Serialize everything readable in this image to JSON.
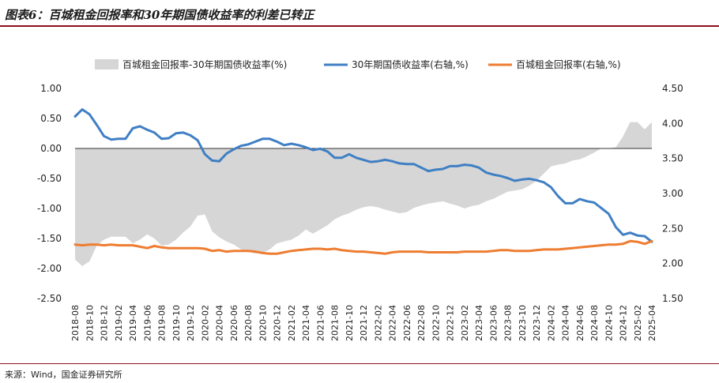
{
  "title": "图表6：百城租金回报率和30年期国债收益率的利差已转正",
  "source": "来源：Wind，国金证券研究所",
  "colors": {
    "spread": "#d6d6d6",
    "bond": "#3f7fc4",
    "rent": "#ee7d31",
    "rule": "#8b0f1e"
  },
  "chart_data": {
    "type": "line",
    "x": [
      "2018-08",
      "2018-09",
      "2018-10",
      "2018-11",
      "2018-12",
      "2019-01",
      "2019-02",
      "2019-03",
      "2019-04",
      "2019-05",
      "2019-06",
      "2019-07",
      "2019-08",
      "2019-09",
      "2019-10",
      "2019-11",
      "2019-12",
      "2020-01",
      "2020-02",
      "2020-03",
      "2020-04",
      "2020-05",
      "2020-06",
      "2020-07",
      "2020-08",
      "2020-09",
      "2020-10",
      "2020-11",
      "2020-12",
      "2021-01",
      "2021-02",
      "2021-03",
      "2021-04",
      "2021-05",
      "2021-06",
      "2021-07",
      "2021-08",
      "2021-09",
      "2021-10",
      "2021-11",
      "2021-12",
      "2022-01",
      "2022-02",
      "2022-03",
      "2022-04",
      "2022-05",
      "2022-06",
      "2022-07",
      "2022-08",
      "2022-09",
      "2022-10",
      "2022-11",
      "2022-12",
      "2023-01",
      "2023-02",
      "2023-03",
      "2023-04",
      "2023-05",
      "2023-06",
      "2023-07",
      "2023-08",
      "2023-09",
      "2023-10",
      "2023-11",
      "2023-12",
      "2024-01",
      "2024-02",
      "2024-03",
      "2024-04",
      "2024-05",
      "2024-06",
      "2024-07",
      "2024-08",
      "2024-09",
      "2024-10",
      "2024-11",
      "2024-12",
      "2025-01",
      "2025-02",
      "2025-03",
      "2025-04"
    ],
    "x_tick_labels": [
      "2018-08",
      "2018-10",
      "2018-12",
      "2019-02",
      "2019-04",
      "2019-06",
      "2019-08",
      "2019-10",
      "2019-12",
      "2020-02",
      "2020-04",
      "2020-06",
      "2020-08",
      "2020-10",
      "2020-12",
      "2021-02",
      "2021-04",
      "2021-06",
      "2021-08",
      "2021-10",
      "2021-12",
      "2022-02",
      "2022-04",
      "2022-06",
      "2022-08",
      "2022-10",
      "2022-12",
      "2023-02",
      "2023-04",
      "2023-06",
      "2023-08",
      "2023-10",
      "2023-12",
      "2024-02",
      "2024-04",
      "2024-06",
      "2024-08",
      "2024-10",
      "2024-12",
      "2025-02",
      "2025-04"
    ],
    "y_left": {
      "min": -2.5,
      "max": 1.0,
      "ticks": [
        "1.00",
        "0.50",
        "0.00",
        "-0.50",
        "-1.00",
        "-1.50",
        "-2.00",
        "-2.50"
      ]
    },
    "y_right": {
      "min": 1.5,
      "max": 4.5,
      "ticks": [
        "4.50",
        "4.00",
        "3.50",
        "3.00",
        "2.50",
        "2.00",
        "1.50"
      ]
    },
    "legend": {
      "position": "top"
    },
    "series": [
      {
        "name": "百城租金回报率-30年期国债收益率(%)",
        "type": "area",
        "axis": "left",
        "values": [
          -1.85,
          -1.96,
          -1.88,
          -1.62,
          -1.52,
          -1.47,
          -1.47,
          -1.47,
          -1.58,
          -1.52,
          -1.43,
          -1.5,
          -1.62,
          -1.6,
          -1.52,
          -1.4,
          -1.3,
          -1.12,
          -1.1,
          -1.38,
          -1.48,
          -1.55,
          -1.6,
          -1.68,
          -1.72,
          -1.75,
          -1.74,
          -1.68,
          -1.58,
          -1.55,
          -1.52,
          -1.45,
          -1.35,
          -1.42,
          -1.35,
          -1.28,
          -1.18,
          -1.12,
          -1.08,
          -1.02,
          -0.98,
          -0.96,
          -0.98,
          -1.02,
          -1.05,
          -1.08,
          -1.06,
          -0.99,
          -0.95,
          -0.92,
          -0.9,
          -0.88,
          -0.92,
          -0.95,
          -1.0,
          -0.96,
          -0.94,
          -0.88,
          -0.84,
          -0.78,
          -0.72,
          -0.7,
          -0.68,
          -0.62,
          -0.54,
          -0.42,
          -0.3,
          -0.27,
          -0.25,
          -0.2,
          -0.18,
          -0.13,
          -0.07,
          0.0,
          0.0,
          0.02,
          0.2,
          0.44,
          0.44,
          0.32,
          0.44
        ]
      },
      {
        "name": "30年期国债收益率(右轴,%)",
        "type": "line",
        "axis": "right",
        "values": [
          4.1,
          4.2,
          4.13,
          3.98,
          3.82,
          3.77,
          3.78,
          3.78,
          3.93,
          3.96,
          3.91,
          3.87,
          3.78,
          3.79,
          3.86,
          3.87,
          3.83,
          3.76,
          3.56,
          3.47,
          3.46,
          3.57,
          3.63,
          3.68,
          3.7,
          3.74,
          3.78,
          3.78,
          3.74,
          3.69,
          3.71,
          3.69,
          3.66,
          3.62,
          3.64,
          3.6,
          3.51,
          3.51,
          3.56,
          3.51,
          3.48,
          3.45,
          3.46,
          3.48,
          3.46,
          3.43,
          3.42,
          3.42,
          3.37,
          3.32,
          3.34,
          3.35,
          3.39,
          3.39,
          3.41,
          3.4,
          3.37,
          3.3,
          3.27,
          3.25,
          3.22,
          3.18,
          3.2,
          3.21,
          3.19,
          3.16,
          3.09,
          2.96,
          2.86,
          2.86,
          2.92,
          2.89,
          2.87,
          2.79,
          2.71,
          2.52,
          2.41,
          2.44,
          2.4,
          2.39,
          2.31
        ]
      },
      {
        "name": "百城租金回报率(右轴,%)",
        "type": "line",
        "axis": "right",
        "values": [
          2.27,
          2.26,
          2.27,
          2.27,
          2.26,
          2.27,
          2.26,
          2.26,
          2.26,
          2.24,
          2.22,
          2.25,
          2.23,
          2.22,
          2.22,
          2.22,
          2.22,
          2.22,
          2.21,
          2.18,
          2.19,
          2.17,
          2.18,
          2.18,
          2.18,
          2.17,
          2.15,
          2.14,
          2.14,
          2.16,
          2.18,
          2.19,
          2.2,
          2.21,
          2.21,
          2.2,
          2.21,
          2.19,
          2.18,
          2.17,
          2.17,
          2.16,
          2.15,
          2.14,
          2.16,
          2.17,
          2.17,
          2.17,
          2.17,
          2.16,
          2.16,
          2.16,
          2.16,
          2.16,
          2.17,
          2.17,
          2.17,
          2.17,
          2.18,
          2.19,
          2.19,
          2.18,
          2.18,
          2.18,
          2.19,
          2.2,
          2.2,
          2.2,
          2.21,
          2.22,
          2.23,
          2.24,
          2.25,
          2.26,
          2.27,
          2.27,
          2.28,
          2.32,
          2.31,
          2.28,
          2.32
        ]
      }
    ]
  }
}
